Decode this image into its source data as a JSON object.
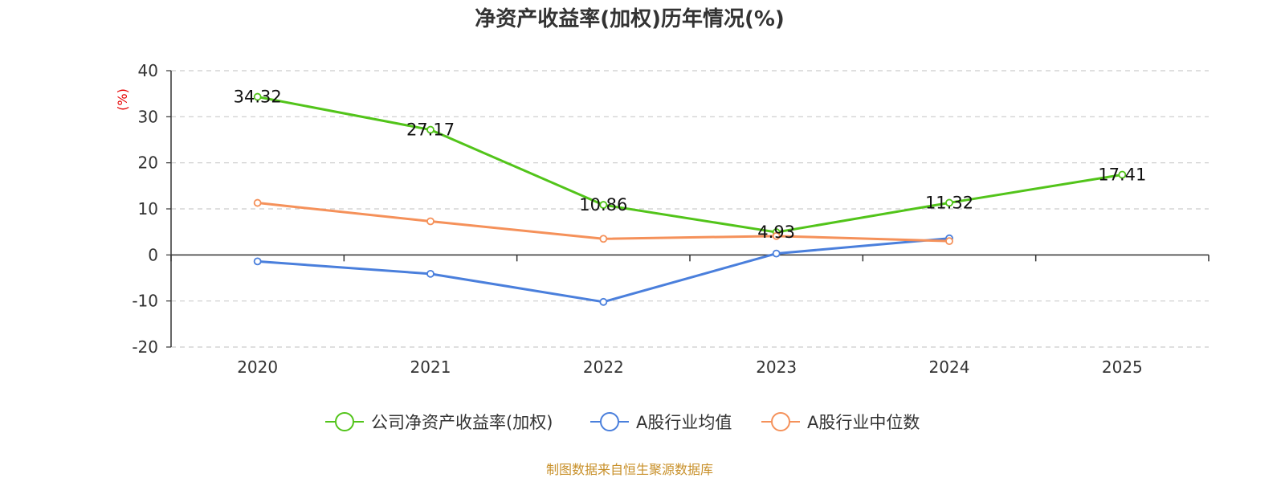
{
  "chart_data": {
    "type": "line",
    "title": "净资产收益率(加权)历年情况(%)",
    "ylabel": "(%)",
    "categories": [
      "2020",
      "2021",
      "2022",
      "2023",
      "2024",
      "2025"
    ],
    "ylim": [
      -20,
      40
    ],
    "yticks": [
      40,
      30,
      20,
      10,
      0,
      -10,
      -20
    ],
    "grid": true,
    "legend_position": "bottom-center",
    "series": [
      {
        "name": "公司净资产收益率(加权)",
        "color": "#52c41a",
        "values": [
          34.32,
          27.17,
          10.86,
          4.93,
          11.32,
          17.41
        ],
        "labels": [
          "34.32",
          "27.17",
          "10.86",
          "4.93",
          "11.32",
          "17.41"
        ]
      },
      {
        "name": "A股行业均值",
        "color": "#4a7fdc",
        "values": [
          -1.4,
          -4.1,
          -10.2,
          0.3,
          3.6,
          null
        ]
      },
      {
        "name": "A股行业中位数",
        "color": "#f5915a",
        "values": [
          11.3,
          7.3,
          3.5,
          4.1,
          3.0,
          null
        ]
      }
    ],
    "source": "制图数据来自恒生聚源数据库"
  }
}
